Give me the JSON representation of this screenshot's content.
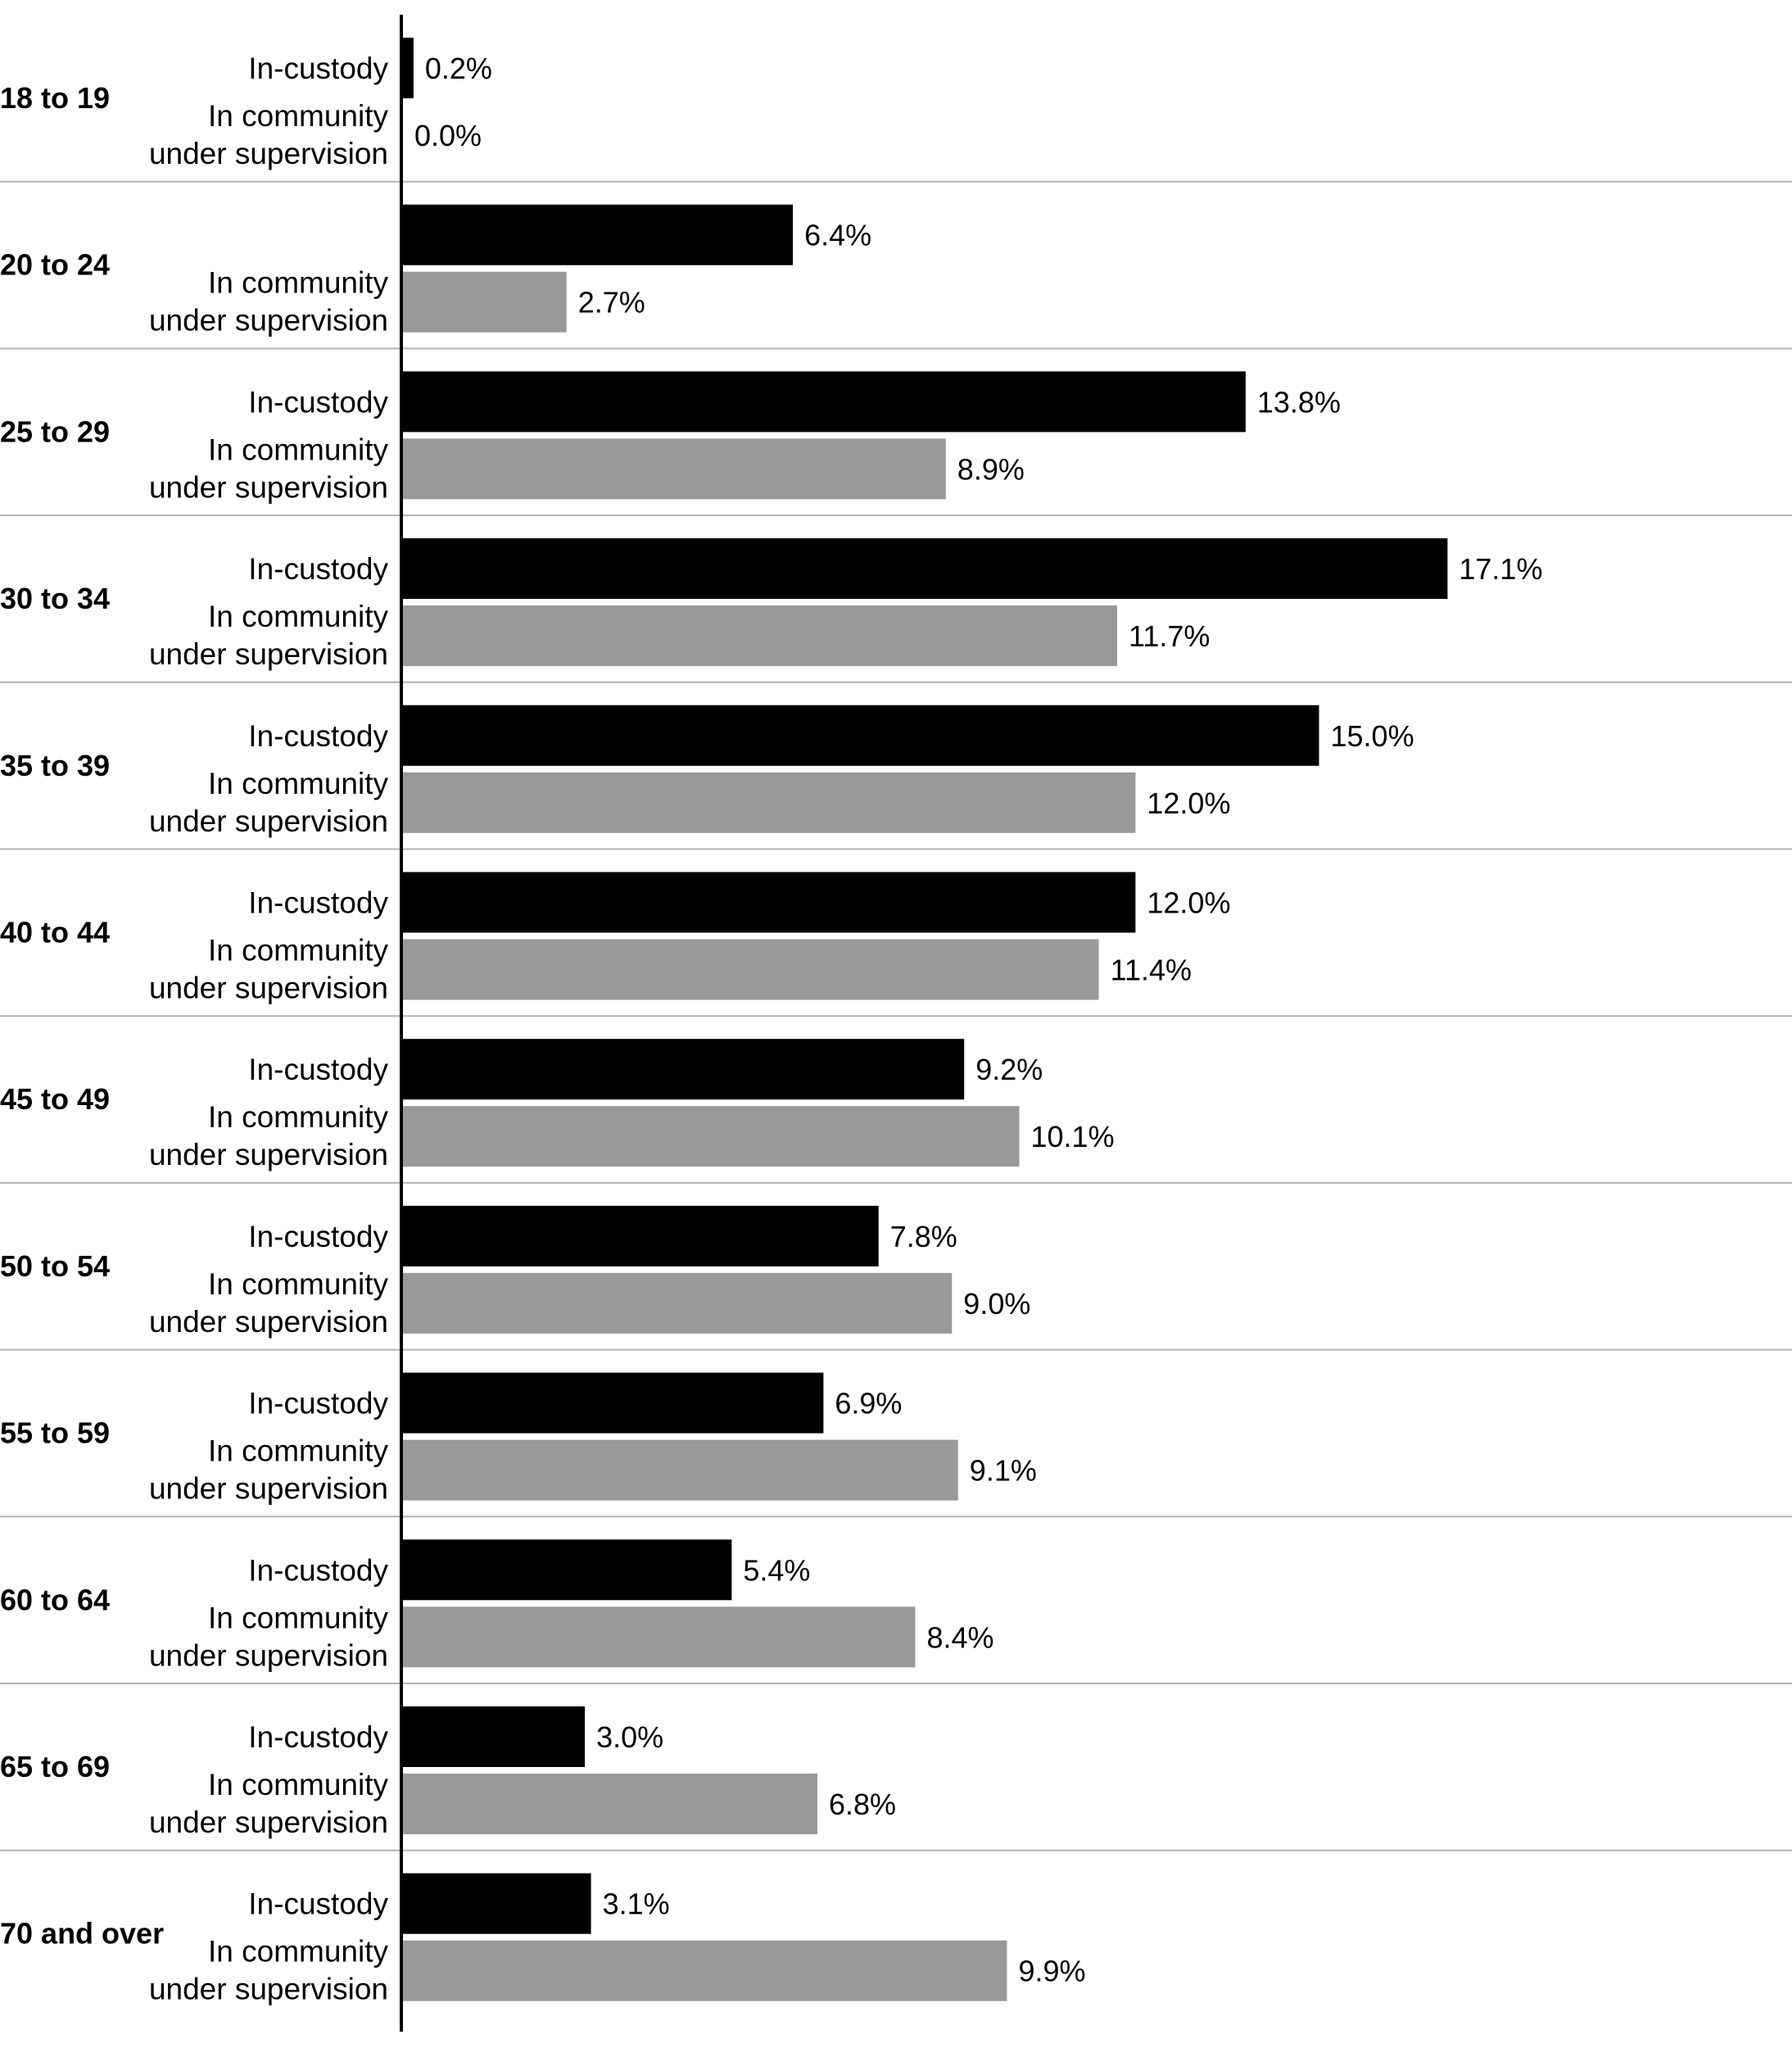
{
  "chart_data": {
    "type": "bar",
    "orientation": "horizontal",
    "categories": [
      "18 to 19",
      "20 to 24",
      "25 to 29",
      "30 to 34",
      "35 to 39",
      "40 to 44",
      "45 to 49",
      "50 to 54",
      "55 to 59",
      "60 to 64",
      "65 to 69",
      "70 and over"
    ],
    "series": [
      {
        "values": [
          0.2,
          6.4,
          13.8,
          17.1,
          15.0,
          12.0,
          9.2,
          7.8,
          6.9,
          5.4,
          3.0,
          3.1
        ],
        "value_labels": [
          "0.2%",
          "6.4%",
          "13.8%",
          "17.1%",
          "15.0%",
          "12.0%",
          "9.2%",
          "7.8%",
          "6.9%",
          "5.4%",
          "3.0%",
          "3.1%"
        ],
        "color": "#000000"
      },
      {
        "values": [
          0.0,
          2.7,
          8.9,
          11.7,
          12.0,
          11.4,
          10.1,
          9.0,
          9.1,
          8.4,
          6.8,
          9.9
        ],
        "value_labels": [
          "0.0%",
          "2.7%",
          "8.9%",
          "11.7%",
          "12.0%",
          "11.4%",
          "10.1%",
          "9.0%",
          "9.1%",
          "8.4%",
          "6.8%",
          "9.9%"
        ],
        "color": "#999999"
      }
    ],
    "bar_labels": {
      "in_custody": "In-custody",
      "community_line1": "In community",
      "community_line2": "under supervision"
    },
    "xlim": [
      0,
      17.5
    ],
    "title": "",
    "xlabel": "",
    "ylabel": "",
    "legend": "none",
    "grid": "horizontal separators between categories",
    "separator_color": "#b3b3b3",
    "axis_color": "#000000"
  }
}
